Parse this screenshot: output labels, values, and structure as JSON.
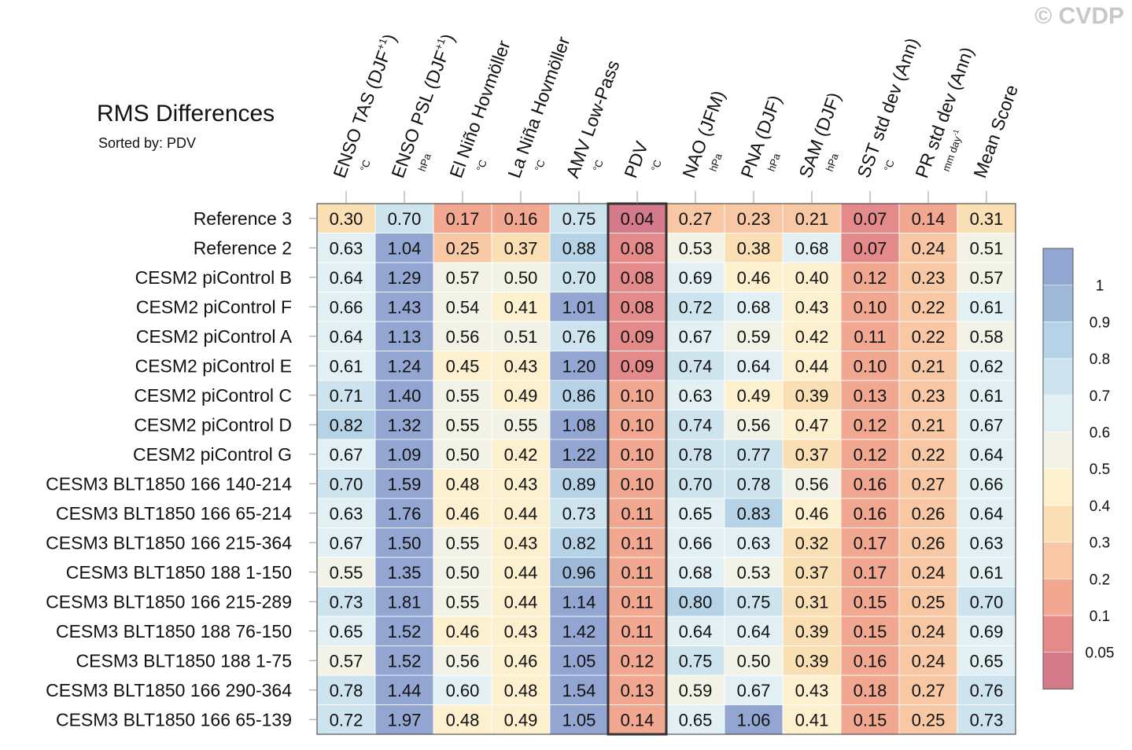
{
  "title": "RMS Differences",
  "subtitle": "Sorted by: PDV",
  "copyright": "© CVDP",
  "chart_data": {
    "type": "heatmap",
    "highlighted_column": "PDV",
    "columns": [
      {
        "name": "ENSO TAS (DJF",
        "sup": "+1",
        "close": ")",
        "unit": "°C"
      },
      {
        "name": "ENSO PSL (DJF",
        "sup": "+1",
        "close": ")",
        "unit": "hPa"
      },
      {
        "name": "El Niño Hovmöller",
        "unit": "°C"
      },
      {
        "name": "La Niña Hovmöller",
        "unit": "°C"
      },
      {
        "name": "AMV Low-Pass",
        "unit": "°C"
      },
      {
        "name": "PDV",
        "unit": "°C"
      },
      {
        "name": "NAO (JFM)",
        "unit": "hPa"
      },
      {
        "name": "PNA (DJF)",
        "unit": "hPa"
      },
      {
        "name": "SAM (DJF)",
        "unit": "hPa"
      },
      {
        "name": "SST std dev (Ann)",
        "unit": "°C"
      },
      {
        "name": "PR std dev (Ann)",
        "unit": "mm day",
        "unit_sup": "-1"
      },
      {
        "name": "Mean Score",
        "unit": ""
      }
    ],
    "rows": [
      "Reference 3",
      "Reference 2",
      "CESM2 piControl B",
      "CESM2 piControl F",
      "CESM2 piControl A",
      "CESM2 piControl E",
      "CESM2 piControl C",
      "CESM2 piControl D",
      "CESM2 piControl G",
      "CESM3 BLT1850 166 140-214",
      "CESM3 BLT1850 166 65-214",
      "CESM3 BLT1850 166 215-364",
      "CESM3 BLT1850 188 1-150",
      "CESM3 BLT1850 166 215-289",
      "CESM3 BLT1850 188 76-150",
      "CESM3 BLT1850 188 1-75",
      "CESM3 BLT1850 166 290-364",
      "CESM3 BLT1850 166 65-139"
    ],
    "values": [
      [
        "0.30",
        "0.70",
        "0.17",
        "0.16",
        "0.75",
        "0.04",
        "0.27",
        "0.23",
        "0.21",
        "0.07",
        "0.14",
        "0.31"
      ],
      [
        "0.63",
        "1.04",
        "0.25",
        "0.37",
        "0.88",
        "0.08",
        "0.53",
        "0.38",
        "0.68",
        "0.07",
        "0.24",
        "0.51"
      ],
      [
        "0.64",
        "1.29",
        "0.57",
        "0.50",
        "0.70",
        "0.08",
        "0.69",
        "0.46",
        "0.40",
        "0.12",
        "0.23",
        "0.57"
      ],
      [
        "0.66",
        "1.43",
        "0.54",
        "0.41",
        "1.01",
        "0.08",
        "0.72",
        "0.68",
        "0.43",
        "0.10",
        "0.22",
        "0.61"
      ],
      [
        "0.64",
        "1.13",
        "0.56",
        "0.51",
        "0.76",
        "0.09",
        "0.67",
        "0.59",
        "0.42",
        "0.11",
        "0.22",
        "0.58"
      ],
      [
        "0.61",
        "1.24",
        "0.45",
        "0.43",
        "1.20",
        "0.09",
        "0.74",
        "0.64",
        "0.44",
        "0.10",
        "0.21",
        "0.62"
      ],
      [
        "0.71",
        "1.40",
        "0.55",
        "0.49",
        "0.86",
        "0.10",
        "0.63",
        "0.49",
        "0.39",
        "0.13",
        "0.23",
        "0.61"
      ],
      [
        "0.82",
        "1.32",
        "0.55",
        "0.55",
        "1.08",
        "0.10",
        "0.74",
        "0.56",
        "0.47",
        "0.12",
        "0.21",
        "0.67"
      ],
      [
        "0.67",
        "1.09",
        "0.50",
        "0.42",
        "1.22",
        "0.10",
        "0.78",
        "0.77",
        "0.37",
        "0.12",
        "0.22",
        "0.64"
      ],
      [
        "0.70",
        "1.59",
        "0.48",
        "0.43",
        "0.89",
        "0.10",
        "0.70",
        "0.78",
        "0.56",
        "0.16",
        "0.27",
        "0.66"
      ],
      [
        "0.63",
        "1.76",
        "0.46",
        "0.44",
        "0.73",
        "0.11",
        "0.65",
        "0.83",
        "0.46",
        "0.16",
        "0.26",
        "0.64"
      ],
      [
        "0.67",
        "1.50",
        "0.55",
        "0.43",
        "0.82",
        "0.11",
        "0.66",
        "0.63",
        "0.32",
        "0.17",
        "0.26",
        "0.63"
      ],
      [
        "0.55",
        "1.35",
        "0.50",
        "0.44",
        "0.96",
        "0.11",
        "0.68",
        "0.53",
        "0.37",
        "0.17",
        "0.24",
        "0.61"
      ],
      [
        "0.73",
        "1.81",
        "0.55",
        "0.44",
        "1.14",
        "0.11",
        "0.80",
        "0.75",
        "0.31",
        "0.15",
        "0.25",
        "0.70"
      ],
      [
        "0.65",
        "1.52",
        "0.46",
        "0.43",
        "1.42",
        "0.11",
        "0.64",
        "0.64",
        "0.39",
        "0.15",
        "0.24",
        "0.69"
      ],
      [
        "0.57",
        "1.52",
        "0.56",
        "0.46",
        "1.05",
        "0.12",
        "0.75",
        "0.50",
        "0.39",
        "0.16",
        "0.24",
        "0.65"
      ],
      [
        "0.78",
        "1.44",
        "0.60",
        "0.48",
        "1.54",
        "0.13",
        "0.59",
        "0.67",
        "0.43",
        "0.18",
        "0.27",
        "0.76"
      ],
      [
        "0.72",
        "1.97",
        "0.48",
        "0.49",
        "1.05",
        "0.14",
        "0.65",
        "1.06",
        "0.41",
        "0.15",
        "0.25",
        "0.73"
      ]
    ],
    "colorbar": {
      "levels": [
        "0.05",
        "0.1",
        "0.2",
        "0.3",
        "0.4",
        "0.5",
        "0.6",
        "0.7",
        "0.8",
        "0.9",
        "1"
      ],
      "colors": [
        "#d47a8a",
        "#e48a8a",
        "#f2a890",
        "#f8c8a4",
        "#fbdfb4",
        "#fdf0cf",
        "#f2f3e6",
        "#e2f0f4",
        "#cde4ee",
        "#b6d2e6",
        "#9eb8d8",
        "#93a6d2"
      ]
    }
  }
}
